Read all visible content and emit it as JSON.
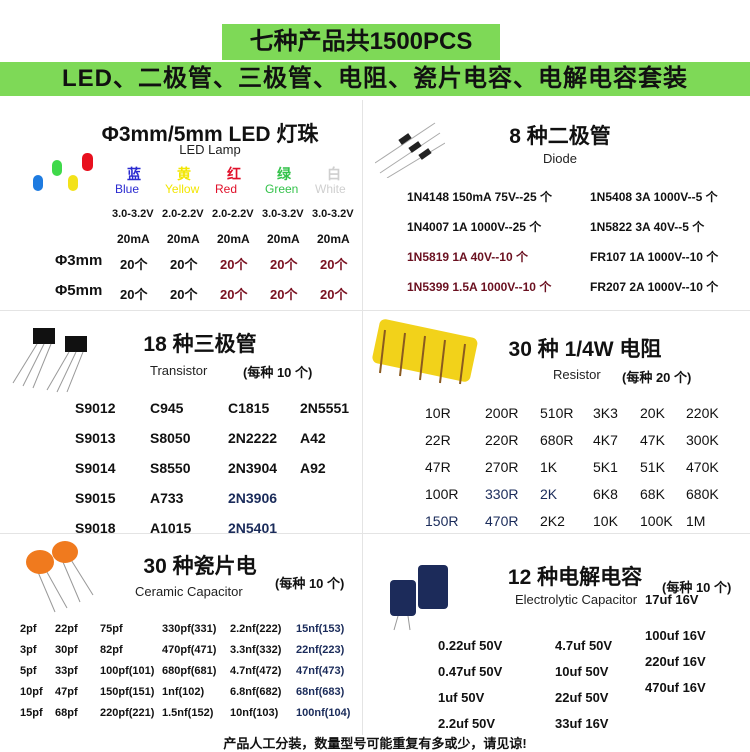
{
  "banner": {
    "title": "七种产品共1500PCS",
    "subtitle": "LED、二极管、三极管、电阻、瓷片电容、电解电容套装"
  },
  "led": {
    "title": "Φ3mm/5mm LED 灯珠",
    "subtitle": "LED Lamp",
    "colors": [
      {
        "cn": "蓝",
        "en": "Blue",
        "hex": "#2a2ad0",
        "volt": "3.0-3.2V",
        "current": "20mA"
      },
      {
        "cn": "黄",
        "en": "Yellow",
        "hex": "#f2e600",
        "volt": "2.0-2.2V",
        "current": "20mA"
      },
      {
        "cn": "红",
        "en": "Red",
        "hex": "#e0102a",
        "volt": "2.0-2.2V",
        "current": "20mA"
      },
      {
        "cn": "绿",
        "en": "Green",
        "hex": "#33c24a",
        "volt": "3.0-3.2V",
        "current": "20mA"
      },
      {
        "cn": "白",
        "en": "White",
        "hex": "#cfcfcf",
        "volt": "3.0-3.2V",
        "current": "20mA"
      }
    ],
    "rows": [
      {
        "size": "Φ3mm",
        "qty": [
          "20个",
          "20个",
          "20个",
          "20个",
          "20个"
        ]
      },
      {
        "size": "Φ5mm",
        "qty": [
          "20个",
          "20个",
          "20个",
          "20个",
          "20个"
        ]
      }
    ]
  },
  "diode": {
    "title": "8 种二极管",
    "subtitle": "Diode",
    "items": [
      "1N4148 150mA  75V--25 个",
      "1N5408  3A 1000V--5 个",
      "1N4007 1A 1000V--25 个",
      "1N5822  3A  40V--5 个",
      "1N5819  1A  40V--10 个",
      "FR107 1A  1000V--10 个",
      "1N5399 1.5A 1000V--10 个",
      "FR207 2A  1000V--10 个"
    ]
  },
  "transistor": {
    "title": "18 种三极管",
    "subtitle": "Transistor",
    "note": "(每种 10 个)",
    "items": [
      "S9012",
      "C945",
      "C1815",
      "2N5551",
      "S9013",
      "S8050",
      "2N2222",
      "A42",
      "S9014",
      "S8550",
      "2N3904",
      "A92",
      "S9015",
      "A733",
      "2N3906",
      "",
      "S9018",
      "A1015",
      "2N5401",
      ""
    ]
  },
  "resistor": {
    "title": "30 种 1/4W 电阻",
    "subtitle": "Resistor",
    "note": "(每种 20 个)",
    "items": [
      "10R",
      "200R",
      "510R",
      "3K3",
      "20K",
      "220K",
      "22R",
      "220R",
      "680R",
      "4K7",
      "47K",
      "300K",
      "47R",
      "270R",
      "1K",
      "5K1",
      "51K",
      "470K",
      "100R",
      "330R",
      "2K",
      "6K8",
      "68K",
      "680K",
      "150R",
      "470R",
      "2K2",
      "10K",
      "100K",
      "1M"
    ]
  },
  "ceramic": {
    "title": "30 种瓷片电",
    "subtitle": "Ceramic Capacitor",
    "note": "(每种 10 个)",
    "items": [
      "2pf",
      "22pf",
      "75pf",
      "330pf(331)",
      "2.2nf(222)",
      "15nf(153)",
      "3pf",
      "30pf",
      "82pf",
      "470pf(471)",
      "3.3nf(332)",
      "22nf(223)",
      "5pf",
      "33pf",
      "100pf(101)",
      "680pf(681)",
      "4.7nf(472)",
      "47nf(473)",
      "10pf",
      "47pf",
      "150pf(151)",
      "1nf(102)",
      "6.8nf(682)",
      "68nf(683)",
      "15pf",
      "68pf",
      "220pf(221)",
      "1.5nf(152)",
      "10nf(103)",
      "100nf(104)"
    ]
  },
  "electrolytic": {
    "title": "12 种电解电容",
    "subtitle": "Electrolytic Capacitor",
    "note": "(每种 10 个)",
    "items": [
      "",
      "",
      "17uf 16V",
      "0.22uf 50V",
      "4.7uf 50V",
      "100uf 16V",
      "0.47uf 50V",
      "10uf 50V",
      "220uf 16V",
      "1uf 50V",
      "22uf 50V",
      "470uf 16V",
      "2.2uf 50V",
      "33uf 16V",
      ""
    ]
  },
  "footer": "产品人工分装，数量型号可能重复有多或少，请见谅!"
}
